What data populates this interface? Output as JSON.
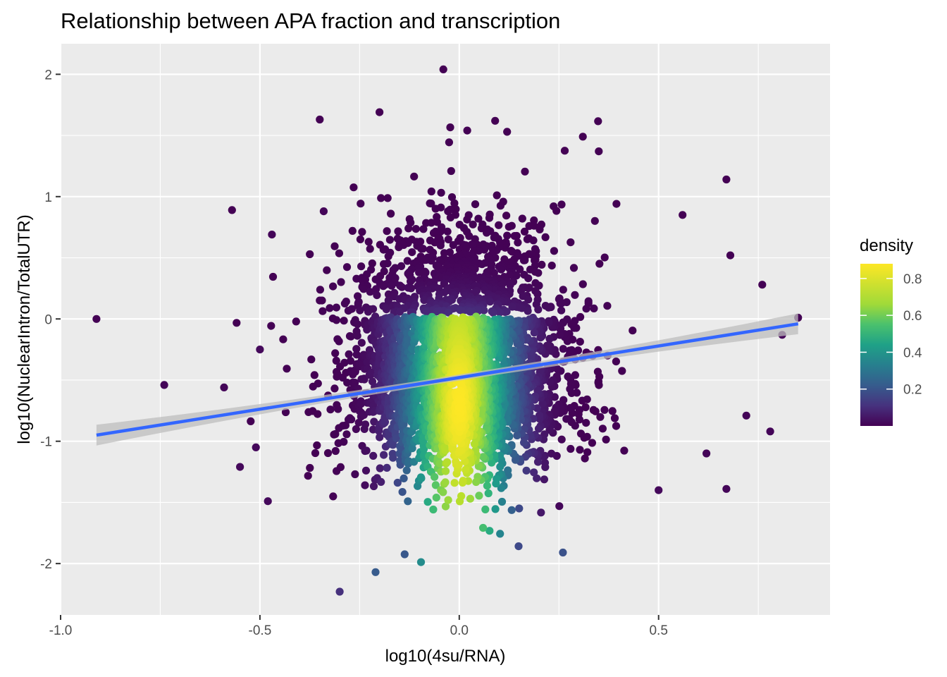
{
  "chart_data": {
    "type": "scatter",
    "title": "Relationship between APA fraction and transcription",
    "xlabel": "log10(4su/RNA)",
    "ylabel": "log10(NuclearIntron/TotalUTR)",
    "xlim": [
      -1.0,
      0.93
    ],
    "ylim": [
      -2.42,
      2.25
    ],
    "x_ticks": [
      -1.0,
      -0.5,
      0.0,
      0.5
    ],
    "x_tick_labels": [
      "-1.0",
      "-0.5",
      "0.0",
      "0.5"
    ],
    "y_ticks": [
      -2,
      -1,
      0,
      1,
      2
    ],
    "y_tick_labels": [
      "-2",
      "-1",
      "0",
      "1",
      "2"
    ],
    "grid": true,
    "legend": {
      "title": "density",
      "placement": "right",
      "type": "colorbar",
      "range": [
        0.0,
        0.88
      ],
      "ticks": [
        0.2,
        0.4,
        0.6,
        0.8
      ],
      "tick_labels": [
        "0.2",
        "0.4",
        "0.6",
        "0.8"
      ],
      "colormap": [
        "#440154",
        "#3b528b",
        "#21918c",
        "#5ec962",
        "#fde725"
      ]
    },
    "trend_line": {
      "method": "linear regression",
      "x": [
        -0.91,
        0.85
      ],
      "y": [
        -0.95,
        -0.04
      ],
      "color": "#3366ff",
      "ribbon_color": "#bdbdbd"
    },
    "panel_background": "#ebebeb",
    "point_cloud": {
      "center_x": 0.0,
      "center_y": -0.5,
      "description": "dense cloud of several thousand genes"
    },
    "outlier_points": [
      {
        "x": -0.91,
        "y": 0.0,
        "density": 0.0
      },
      {
        "x": -0.74,
        "y": -0.54,
        "density": 0.01
      },
      {
        "x": -0.59,
        "y": -0.56,
        "density": 0.01
      },
      {
        "x": -0.57,
        "y": 0.89,
        "density": 0.0
      },
      {
        "x": -0.55,
        "y": -1.21,
        "density": 0.02
      },
      {
        "x": -0.51,
        "y": -1.05,
        "density": 0.02
      },
      {
        "x": -0.5,
        "y": -0.25,
        "density": 0.02
      },
      {
        "x": -0.48,
        "y": -1.49,
        "density": 0.02
      },
      {
        "x": -0.47,
        "y": 0.69,
        "density": 0.01
      },
      {
        "x": -0.35,
        "y": 1.63,
        "density": 0.0
      },
      {
        "x": -0.34,
        "y": 0.88,
        "density": 0.01
      },
      {
        "x": -0.3,
        "y": -2.23,
        "density": 0.12
      },
      {
        "x": -0.21,
        "y": -2.07,
        "density": 0.25
      },
      {
        "x": -0.2,
        "y": 1.69,
        "density": 0.0
      },
      {
        "x": -0.04,
        "y": 2.04,
        "density": 0.0
      },
      {
        "x": 0.02,
        "y": 1.54,
        "density": 0.0
      },
      {
        "x": 0.09,
        "y": 1.62,
        "density": 0.0
      },
      {
        "x": 0.12,
        "y": 1.53,
        "density": 0.0
      },
      {
        "x": 0.31,
        "y": 1.49,
        "density": 0.0
      },
      {
        "x": 0.35,
        "y": 1.37,
        "density": 0.0
      },
      {
        "x": 0.56,
        "y": 0.85,
        "density": 0.0
      },
      {
        "x": 0.67,
        "y": 1.14,
        "density": 0.0
      },
      {
        "x": 0.68,
        "y": 0.52,
        "density": 0.0
      },
      {
        "x": 0.76,
        "y": 0.28,
        "density": 0.0
      },
      {
        "x": 0.85,
        "y": 0.01,
        "density": 0.0
      },
      {
        "x": 0.81,
        "y": -0.13,
        "density": 0.01
      },
      {
        "x": 0.72,
        "y": -0.79,
        "density": 0.01
      },
      {
        "x": 0.78,
        "y": -0.92,
        "density": 0.01
      },
      {
        "x": 0.67,
        "y": -1.39,
        "density": 0.01
      },
      {
        "x": 0.62,
        "y": -1.1,
        "density": 0.01
      },
      {
        "x": 0.5,
        "y": -1.4,
        "density": 0.02
      },
      {
        "x": 0.26,
        "y": -1.91,
        "density": 0.22
      }
    ]
  }
}
